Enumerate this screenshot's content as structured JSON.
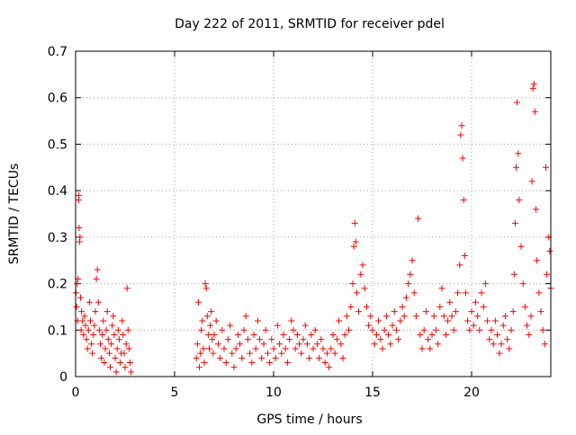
{
  "chart_data": {
    "type": "scatter",
    "title": "Day 222 of 2011, SRMTID for receiver pdel",
    "xlabel": "GPS time / hours",
    "ylabel": "SRMTID / TECUs",
    "xlim": [
      0,
      24
    ],
    "ylim": [
      0,
      0.7
    ],
    "xticks": [
      0,
      5,
      10,
      15,
      20
    ],
    "yticks": [
      0,
      0.1,
      0.2,
      0.3,
      0.4,
      0.5,
      0.6,
      0.7
    ],
    "grid": true,
    "marker": "+",
    "colors": {
      "series": "#ff0000",
      "grid": "#a0a0a0",
      "axis": "#000000"
    },
    "series": [
      {
        "name": "SRMTID",
        "points": [
          [
            0.02,
            0.18
          ],
          [
            0.05,
            0.15
          ],
          [
            0.08,
            0.2
          ],
          [
            0.1,
            0.12
          ],
          [
            0.12,
            0.21
          ],
          [
            0.15,
            0.38
          ],
          [
            0.17,
            0.39
          ],
          [
            0.18,
            0.32
          ],
          [
            0.2,
            0.29
          ],
          [
            0.22,
            0.3
          ],
          [
            0.25,
            0.17
          ],
          [
            0.28,
            0.1
          ],
          [
            0.3,
            0.14
          ],
          [
            0.35,
            0.12
          ],
          [
            0.4,
            0.09
          ],
          [
            0.45,
            0.13
          ],
          [
            0.5,
            0.11
          ],
          [
            0.55,
            0.08
          ],
          [
            0.6,
            0.06
          ],
          [
            0.65,
            0.1
          ],
          [
            0.7,
            0.16
          ],
          [
            0.75,
            0.12
          ],
          [
            0.8,
            0.07
          ],
          [
            0.85,
            0.05
          ],
          [
            0.9,
            0.09
          ],
          [
            0.95,
            0.11
          ],
          [
            1.0,
            0.14
          ],
          [
            1.05,
            0.21
          ],
          [
            1.1,
            0.23
          ],
          [
            1.15,
            0.16
          ],
          [
            1.2,
            0.1
          ],
          [
            1.25,
            0.07
          ],
          [
            1.3,
            0.04
          ],
          [
            1.35,
            0.09
          ],
          [
            1.4,
            0.12
          ],
          [
            1.45,
            0.03
          ],
          [
            1.5,
            0.06
          ],
          [
            1.55,
            0.1
          ],
          [
            1.6,
            0.14
          ],
          [
            1.65,
            0.08
          ],
          [
            1.7,
            0.05
          ],
          [
            1.75,
            0.02
          ],
          [
            1.8,
            0.07
          ],
          [
            1.85,
            0.11
          ],
          [
            1.9,
            0.13
          ],
          [
            1.95,
            0.09
          ],
          [
            2.0,
            0.04
          ],
          [
            2.05,
            0.01
          ],
          [
            2.1,
            0.06
          ],
          [
            2.15,
            0.1
          ],
          [
            2.2,
            0.08
          ],
          [
            2.25,
            0.03
          ],
          [
            2.3,
            0.05
          ],
          [
            2.35,
            0.12
          ],
          [
            2.4,
            0.09
          ],
          [
            2.45,
            0.05
          ],
          [
            2.5,
            0.02
          ],
          [
            2.55,
            0.07
          ],
          [
            2.6,
            0.19
          ],
          [
            2.65,
            0.1
          ],
          [
            2.7,
            0.06
          ],
          [
            2.75,
            0.03
          ],
          [
            2.8,
            0.01
          ],
          [
            6.1,
            0.04
          ],
          [
            6.15,
            0.07
          ],
          [
            6.2,
            0.16
          ],
          [
            6.25,
            0.02
          ],
          [
            6.3,
            0.05
          ],
          [
            6.35,
            0.1
          ],
          [
            6.4,
            0.12
          ],
          [
            6.45,
            0.06
          ],
          [
            6.5,
            0.03
          ],
          [
            6.55,
            0.2
          ],
          [
            6.6,
            0.19
          ],
          [
            6.65,
            0.13
          ],
          [
            6.7,
            0.09
          ],
          [
            6.75,
            0.06
          ],
          [
            6.8,
            0.11
          ],
          [
            6.85,
            0.14
          ],
          [
            6.9,
            0.08
          ],
          [
            6.95,
            0.05
          ],
          [
            7.0,
            0.09
          ],
          [
            7.1,
            0.12
          ],
          [
            7.2,
            0.07
          ],
          [
            7.3,
            0.04
          ],
          [
            7.4,
            0.1
          ],
          [
            7.5,
            0.06
          ],
          [
            7.6,
            0.03
          ],
          [
            7.7,
            0.08
          ],
          [
            7.8,
            0.11
          ],
          [
            7.9,
            0.05
          ],
          [
            8.0,
            0.02
          ],
          [
            8.1,
            0.06
          ],
          [
            8.2,
            0.09
          ],
          [
            8.3,
            0.07
          ],
          [
            8.4,
            0.04
          ],
          [
            8.5,
            0.1
          ],
          [
            8.6,
            0.13
          ],
          [
            8.7,
            0.08
          ],
          [
            8.8,
            0.05
          ],
          [
            8.9,
            0.03
          ],
          [
            9.0,
            0.09
          ],
          [
            9.1,
            0.06
          ],
          [
            9.2,
            0.12
          ],
          [
            9.3,
            0.08
          ],
          [
            9.4,
            0.04
          ],
          [
            9.5,
            0.07
          ],
          [
            9.6,
            0.1
          ],
          [
            9.7,
            0.05
          ],
          [
            9.8,
            0.03
          ],
          [
            9.9,
            0.08
          ],
          [
            10.0,
            0.06
          ],
          [
            10.1,
            0.04
          ],
          [
            10.2,
            0.11
          ],
          [
            10.3,
            0.07
          ],
          [
            10.4,
            0.05
          ],
          [
            10.5,
            0.09
          ],
          [
            10.6,
            0.06
          ],
          [
            10.7,
            0.03
          ],
          [
            10.8,
            0.08
          ],
          [
            10.9,
            0.12
          ],
          [
            11.0,
            0.1
          ],
          [
            11.1,
            0.06
          ],
          [
            11.2,
            0.09
          ],
          [
            11.3,
            0.07
          ],
          [
            11.4,
            0.05
          ],
          [
            11.5,
            0.08
          ],
          [
            11.6,
            0.11
          ],
          [
            11.7,
            0.07
          ],
          [
            11.8,
            0.04
          ],
          [
            11.9,
            0.09
          ],
          [
            12.0,
            0.06
          ],
          [
            12.1,
            0.1
          ],
          [
            12.2,
            0.07
          ],
          [
            12.3,
            0.04
          ],
          [
            12.4,
            0.08
          ],
          [
            12.5,
            0.06
          ],
          [
            12.6,
            0.03
          ],
          [
            12.7,
            0.05
          ],
          [
            12.8,
            0.02
          ],
          [
            12.9,
            0.06
          ],
          [
            13.0,
            0.09
          ],
          [
            13.1,
            0.05
          ],
          [
            13.2,
            0.08
          ],
          [
            13.3,
            0.12
          ],
          [
            13.4,
            0.07
          ],
          [
            13.5,
            0.04
          ],
          [
            13.6,
            0.09
          ],
          [
            13.7,
            0.13
          ],
          [
            13.8,
            0.1
          ],
          [
            13.9,
            0.15
          ],
          [
            14.0,
            0.2
          ],
          [
            14.05,
            0.28
          ],
          [
            14.1,
            0.33
          ],
          [
            14.15,
            0.29
          ],
          [
            14.2,
            0.18
          ],
          [
            14.3,
            0.14
          ],
          [
            14.4,
            0.22
          ],
          [
            14.5,
            0.24
          ],
          [
            14.6,
            0.19
          ],
          [
            14.7,
            0.15
          ],
          [
            14.8,
            0.11
          ],
          [
            14.9,
            0.13
          ],
          [
            15.0,
            0.1
          ],
          [
            15.1,
            0.07
          ],
          [
            15.2,
            0.09
          ],
          [
            15.3,
            0.12
          ],
          [
            15.4,
            0.08
          ],
          [
            15.5,
            0.06
          ],
          [
            15.6,
            0.1
          ],
          [
            15.7,
            0.13
          ],
          [
            15.8,
            0.09
          ],
          [
            15.9,
            0.07
          ],
          [
            16.0,
            0.11
          ],
          [
            16.1,
            0.14
          ],
          [
            16.2,
            0.1
          ],
          [
            16.3,
            0.08
          ],
          [
            16.4,
            0.12
          ],
          [
            16.5,
            0.15
          ],
          [
            16.6,
            0.13
          ],
          [
            16.7,
            0.17
          ],
          [
            16.8,
            0.2
          ],
          [
            16.9,
            0.22
          ],
          [
            17.0,
            0.25
          ],
          [
            17.1,
            0.18
          ],
          [
            17.2,
            0.13
          ],
          [
            17.3,
            0.34
          ],
          [
            17.4,
            0.09
          ],
          [
            17.5,
            0.06
          ],
          [
            17.6,
            0.1
          ],
          [
            17.7,
            0.14
          ],
          [
            17.8,
            0.08
          ],
          [
            17.9,
            0.06
          ],
          [
            18.0,
            0.09
          ],
          [
            18.1,
            0.13
          ],
          [
            18.2,
            0.1
          ],
          [
            18.3,
            0.07
          ],
          [
            18.4,
            0.15
          ],
          [
            18.5,
            0.19
          ],
          [
            18.6,
            0.13
          ],
          [
            18.7,
            0.09
          ],
          [
            18.8,
            0.12
          ],
          [
            18.9,
            0.16
          ],
          [
            19.0,
            0.13
          ],
          [
            19.1,
            0.1
          ],
          [
            19.2,
            0.14
          ],
          [
            19.3,
            0.18
          ],
          [
            19.4,
            0.24
          ],
          [
            19.45,
            0.52
          ],
          [
            19.5,
            0.54
          ],
          [
            19.55,
            0.47
          ],
          [
            19.6,
            0.38
          ],
          [
            19.65,
            0.26
          ],
          [
            19.7,
            0.18
          ],
          [
            19.8,
            0.12
          ],
          [
            19.9,
            0.1
          ],
          [
            20.0,
            0.14
          ],
          [
            20.1,
            0.11
          ],
          [
            20.2,
            0.16
          ],
          [
            20.3,
            0.13
          ],
          [
            20.4,
            0.1
          ],
          [
            20.5,
            0.18
          ],
          [
            20.6,
            0.15
          ],
          [
            20.7,
            0.2
          ],
          [
            20.8,
            0.12
          ],
          [
            20.9,
            0.08
          ],
          [
            21.0,
            0.1
          ],
          [
            21.1,
            0.07
          ],
          [
            21.2,
            0.12
          ],
          [
            21.3,
            0.09
          ],
          [
            21.4,
            0.05
          ],
          [
            21.5,
            0.07
          ],
          [
            21.6,
            0.11
          ],
          [
            21.7,
            0.13
          ],
          [
            21.8,
            0.08
          ],
          [
            21.9,
            0.06
          ],
          [
            22.0,
            0.1
          ],
          [
            22.1,
            0.14
          ],
          [
            22.15,
            0.22
          ],
          [
            22.2,
            0.33
          ],
          [
            22.25,
            0.45
          ],
          [
            22.3,
            0.59
          ],
          [
            22.35,
            0.48
          ],
          [
            22.4,
            0.38
          ],
          [
            22.5,
            0.28
          ],
          [
            22.6,
            0.2
          ],
          [
            22.7,
            0.15
          ],
          [
            22.8,
            0.11
          ],
          [
            22.9,
            0.09
          ],
          [
            23.0,
            0.13
          ],
          [
            23.05,
            0.42
          ],
          [
            23.1,
            0.62
          ],
          [
            23.15,
            0.63
          ],
          [
            23.2,
            0.57
          ],
          [
            23.25,
            0.36
          ],
          [
            23.3,
            0.25
          ],
          [
            23.4,
            0.18
          ],
          [
            23.5,
            0.14
          ],
          [
            23.6,
            0.1
          ],
          [
            23.7,
            0.07
          ],
          [
            23.75,
            0.45
          ],
          [
            23.8,
            0.22
          ],
          [
            23.9,
            0.3
          ],
          [
            23.95,
            0.27
          ],
          [
            24.0,
            0.19
          ]
        ]
      }
    ]
  }
}
